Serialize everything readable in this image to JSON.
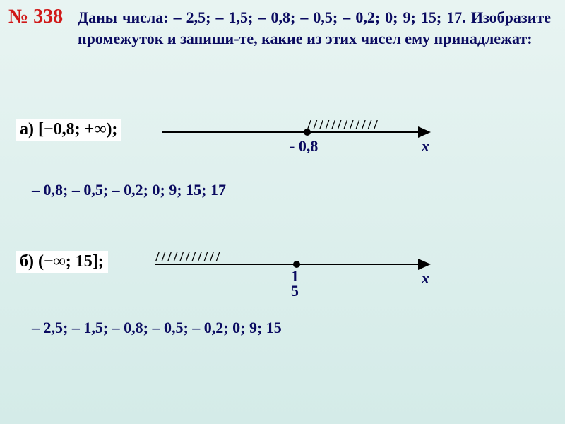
{
  "problem": {
    "number": "№ 338",
    "text": "Даны числа: – 2,5; – 1,5; – 0,8; – 0,5; – 0,2; 0; 9;  15;  17. Изобразите промежуток и запиши-те, какие из этих чисел ему принадлежат:"
  },
  "partA": {
    "label": "а) [−0,8; +∞);",
    "hatching": "/ / / / / / / / / / / /",
    "pointLabel": "- 0,8",
    "xLabel": "х",
    "answer": "– 0,8; – 0,5; – 0,2;  0; 9;  15;  17"
  },
  "partB": {
    "label": "б) (−∞; 15];",
    "hatching": "/ / / / / / / / / / /",
    "pointLabel1": "1",
    "pointLabel2": "5",
    "xLabel": "х",
    "answer": "– 2,5; – 1,5; – 0,8; – 0,5; – 0,2;  0; 9;  15"
  },
  "colors": {
    "problem_number": "#d01818",
    "text": "#0a0a60",
    "bg_top": "#e8f4f2",
    "bg_bottom": "#d4ebe8"
  }
}
